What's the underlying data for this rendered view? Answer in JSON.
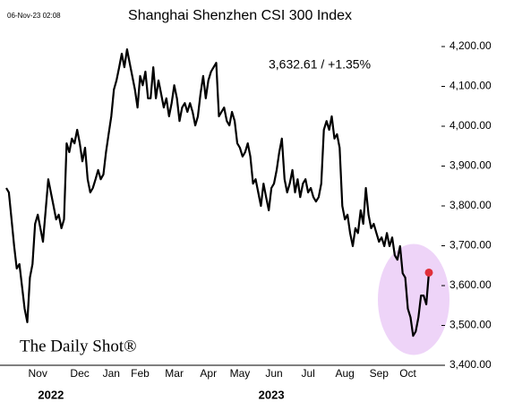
{
  "chart_data": {
    "type": "line",
    "title": "Shanghai Shenzhen CSI 300 Index",
    "timestamp": "06-Nov-23 02:08",
    "annotation": "3,632.61  /  +1.35%",
    "source": "The Daily Shot®",
    "color": "#000000",
    "last_point_color": "#e0303a",
    "highlight_color": "#e3b8f3",
    "values": [
      3845,
      3834,
      3766,
      3699,
      3643,
      3654,
      3598,
      3542,
      3508,
      3620,
      3654,
      3755,
      3778,
      3744,
      3710,
      3789,
      3867,
      3834,
      3800,
      3766,
      3778,
      3744,
      3766,
      3957,
      3935,
      3969,
      3957,
      3991,
      3957,
      3912,
      3946,
      3867,
      3834,
      3845,
      3867,
      3890,
      3867,
      3879,
      3935,
      3980,
      4025,
      4092,
      4115,
      4148,
      4182,
      4148,
      4193,
      4159,
      4126,
      4092,
      4047,
      4126,
      4103,
      4137,
      4070,
      4070,
      4148,
      4070,
      4115,
      4081,
      4047,
      4070,
      4025,
      4058,
      4103,
      4070,
      4013,
      4047,
      4058,
      4036,
      4058,
      4036,
      4002,
      4025,
      4081,
      4126,
      4070,
      4115,
      4137,
      4148,
      4159,
      4025,
      4036,
      4047,
      4013,
      4002,
      4036,
      4013,
      3957,
      3946,
      3924,
      3935,
      3957,
      3924,
      3856,
      3867,
      3834,
      3800,
      3856,
      3822,
      3789,
      3845,
      3856,
      3890,
      3935,
      3969,
      3867,
      3834,
      3856,
      3890,
      3834,
      3867,
      3822,
      3856,
      3867,
      3834,
      3845,
      3822,
      3811,
      3822,
      3856,
      3991,
      4013,
      3991,
      4025,
      3969,
      3980,
      3946,
      3800,
      3766,
      3778,
      3732,
      3699,
      3744,
      3732,
      3789,
      3755,
      3845,
      3778,
      3744,
      3755,
      3732,
      3710,
      3721,
      3699,
      3732,
      3699,
      3721,
      3676,
      3665,
      3699,
      3631,
      3620,
      3542,
      3520,
      3474,
      3485,
      3520,
      3575,
      3575,
      3553,
      3632.61
    ],
    "xlim": [
      0,
      161
    ],
    "xticks": [
      {
        "value": 12,
        "label": "Nov"
      },
      {
        "value": 28,
        "label": "Dec"
      },
      {
        "value": 40,
        "label": "Jan"
      },
      {
        "value": 51,
        "label": "Feb"
      },
      {
        "value": 64,
        "label": "Mar"
      },
      {
        "value": 77,
        "label": "Apr"
      },
      {
        "value": 89,
        "label": "May"
      },
      {
        "value": 102,
        "label": "Jun"
      },
      {
        "value": 115,
        "label": "Jul"
      },
      {
        "value": 129,
        "label": "Aug"
      },
      {
        "value": 142,
        "label": "Sep"
      },
      {
        "value": 153,
        "label": "Oct"
      }
    ],
    "year_labels": [
      {
        "value": 17,
        "label": "2022"
      },
      {
        "value": 101,
        "label": "2023"
      }
    ],
    "ylim": [
      3400,
      4200
    ],
    "yticks": [
      {
        "value": 3400,
        "label": "3,400.00"
      },
      {
        "value": 3500,
        "label": "3,500.00"
      },
      {
        "value": 3600,
        "label": "3,600.00"
      },
      {
        "value": 3700,
        "label": "3,700.00"
      },
      {
        "value": 3800,
        "label": "3,800.00"
      },
      {
        "value": 3900,
        "label": "3,900.00"
      },
      {
        "value": 4000,
        "label": "4,000.00"
      },
      {
        "value": 4100,
        "label": "4,100.00"
      },
      {
        "value": 4200,
        "label": "4,200.00"
      }
    ],
    "grid": false
  }
}
